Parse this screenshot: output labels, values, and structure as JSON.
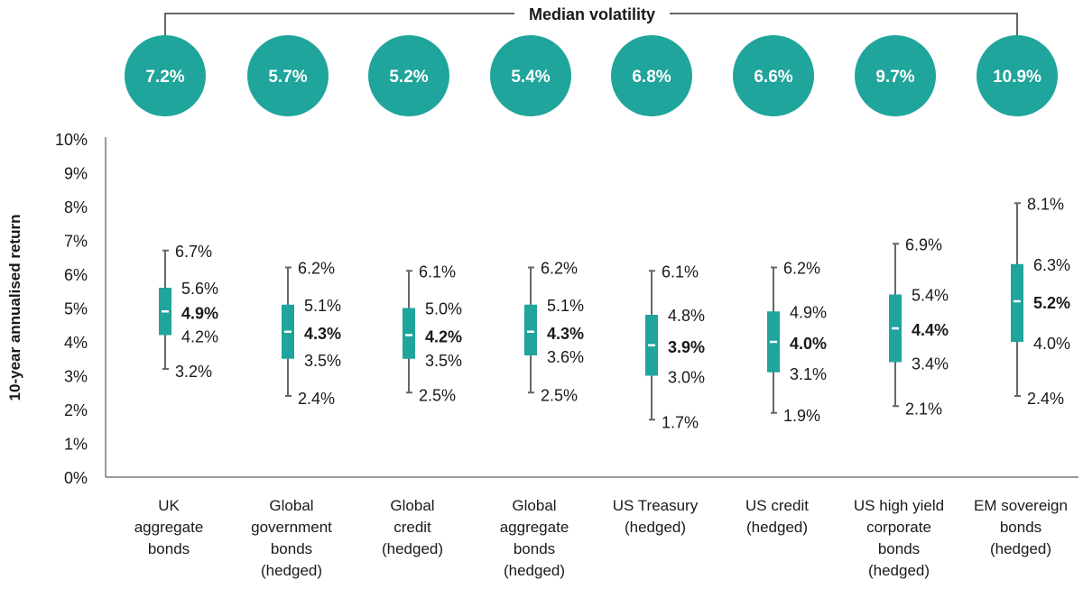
{
  "chart_data": {
    "type": "box",
    "title": "Median volatility",
    "ylabel": "10-year annualised return",
    "ylim": [
      0,
      10
    ],
    "yticks": [
      "0%",
      "1%",
      "2%",
      "3%",
      "4%",
      "5%",
      "6%",
      "7%",
      "8%",
      "9%",
      "10%"
    ],
    "categories": [
      [
        "UK",
        "aggregate",
        "bonds"
      ],
      [
        "Global",
        "government",
        "bonds",
        "(hedged)"
      ],
      [
        "Global",
        "credit",
        "(hedged)"
      ],
      [
        "Global",
        "aggregate",
        "bonds",
        "(hedged)"
      ],
      [
        "US Treasury",
        "(hedged)"
      ],
      [
        "US credit",
        "(hedged)"
      ],
      [
        "US high yield",
        "corporate",
        "bonds",
        "(hedged)"
      ],
      [
        "EM sovereign",
        "bonds",
        "(hedged)"
      ]
    ],
    "volatility": [
      "7.2%",
      "5.7%",
      "5.2%",
      "5.4%",
      "6.8%",
      "6.6%",
      "9.7%",
      "10.9%"
    ],
    "series": [
      {
        "max": 6.7,
        "q3": 5.6,
        "median": 4.9,
        "q1": 4.2,
        "min": 3.2
      },
      {
        "max": 6.2,
        "q3": 5.1,
        "median": 4.3,
        "q1": 3.5,
        "min": 2.4
      },
      {
        "max": 6.1,
        "q3": 5.0,
        "median": 4.2,
        "q1": 3.5,
        "min": 2.5
      },
      {
        "max": 6.2,
        "q3": 5.1,
        "median": 4.3,
        "q1": 3.6,
        "min": 2.5
      },
      {
        "max": 6.1,
        "q3": 4.8,
        "median": 3.9,
        "q1": 3.0,
        "min": 1.7
      },
      {
        "max": 6.2,
        "q3": 4.9,
        "median": 4.0,
        "q1": 3.1,
        "min": 1.9
      },
      {
        "max": 6.9,
        "q3": 5.4,
        "median": 4.4,
        "q1": 3.4,
        "min": 2.1
      },
      {
        "max": 8.1,
        "q3": 6.3,
        "median": 5.2,
        "q1": 4.0,
        "min": 2.4
      }
    ],
    "colors": {
      "accent": "#1fa59b",
      "text": "#1a1a1a",
      "axis": "#333333",
      "whisker": "#666666"
    }
  }
}
